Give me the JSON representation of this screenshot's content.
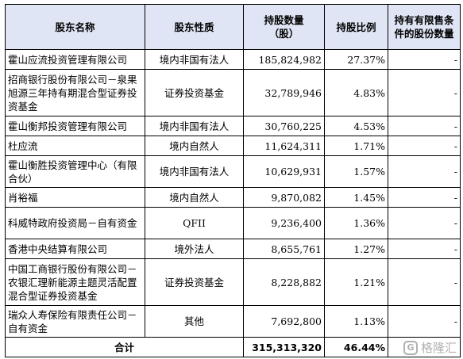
{
  "headers": {
    "name": "股东名称",
    "nature": "股东性质",
    "shares": "持股数量\n（股）",
    "ratio": "持股比例",
    "restricted": "持有有限售条件的股份数量"
  },
  "rows": [
    {
      "name": "霍山应流投资管理有限公司",
      "nature": "境内非国有法人",
      "shares": "185,824,982",
      "ratio": "27.37%",
      "restricted": "-"
    },
    {
      "name": "招商银行股份有限公司－泉果旭源三年持有期混合型证券投资基金",
      "nature": "证券投资基金",
      "shares": "32,789,946",
      "ratio": "4.83%",
      "restricted": "-"
    },
    {
      "name": "霍山衡邦投资管理有限公司",
      "nature": "境内非国有法人",
      "shares": "30,760,225",
      "ratio": "4.53%",
      "restricted": "-"
    },
    {
      "name": "杜应流",
      "nature": "境内自然人",
      "shares": "11,624,311",
      "ratio": "1.71%",
      "restricted": "-"
    },
    {
      "name": "霍山衡胜投资管理中心（有限合伙）",
      "nature": "境内非国有法人",
      "shares": "10,629,931",
      "ratio": "1.57%",
      "restricted": "-"
    },
    {
      "name": "肖裕福",
      "nature": "境内自然人",
      "shares": "9,870,082",
      "ratio": "1.45%",
      "restricted": "-"
    },
    {
      "name": "科威特政府投资局－自有资金",
      "nature": "QFII",
      "shares": "9,236,400",
      "ratio": "1.36%",
      "restricted": "-"
    },
    {
      "name": "香港中央结算有限公司",
      "nature": "境外法人",
      "shares": "8,655,761",
      "ratio": "1.27%",
      "restricted": "-"
    },
    {
      "name": "中国工商银行股份有限公司－农银汇理新能源主题灵活配置混合型证券投资基金",
      "nature": "证券投资基金",
      "shares": "8,228,882",
      "ratio": "1.21%",
      "restricted": "-"
    },
    {
      "name": "瑞众人寿保险有限责任公司－自有资金",
      "nature": "其他",
      "shares": "7,692,800",
      "ratio": "1.13%",
      "restricted": "-"
    }
  ],
  "total": {
    "label": "合计",
    "shares": "315,313,320",
    "ratio": "46.44%"
  },
  "watermark": {
    "text": "格隆汇",
    "logo": "G"
  }
}
